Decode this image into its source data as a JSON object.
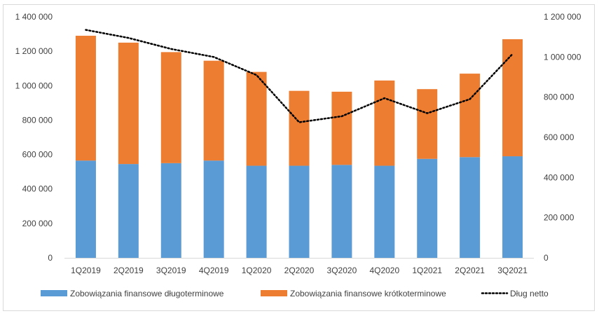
{
  "chart_data": {
    "type": "bar",
    "stacked": true,
    "categories": [
      "1Q2019",
      "2Q2019",
      "3Q2019",
      "4Q2019",
      "1Q2020",
      "2Q2020",
      "3Q2020",
      "4Q2020",
      "1Q2021",
      "2Q2021",
      "3Q2021"
    ],
    "series": [
      {
        "name": "Zobowiązania finansowe długoterminowe",
        "axis": "left",
        "kind": "bar",
        "color": "#5b9bd5",
        "values": [
          565000,
          545000,
          550000,
          565000,
          535000,
          535000,
          540000,
          535000,
          575000,
          585000,
          590000
        ]
      },
      {
        "name": "Zobowiązania finansowe krótkoterminowe",
        "axis": "left",
        "kind": "bar",
        "color": "#ed7d31",
        "values": [
          725000,
          705000,
          645000,
          580000,
          545000,
          435000,
          425000,
          495000,
          405000,
          485000,
          680000
        ]
      },
      {
        "name": "Dług netto",
        "axis": "right",
        "kind": "line",
        "style": "dotted",
        "color": "#000000",
        "values": [
          1135000,
          1095000,
          1040000,
          1000000,
          910000,
          675000,
          705000,
          795000,
          720000,
          790000,
          1015000
        ]
      }
    ],
    "y_left": {
      "min": 0,
      "max": 1400000,
      "ticks": [
        "0",
        "200 000",
        "400 000",
        "600 000",
        "800 000",
        "1 000 000",
        "1 200 000",
        "1 400 000"
      ]
    },
    "y_right": {
      "min": 0,
      "max": 1200000,
      "ticks": [
        "0",
        "200 000",
        "400 000",
        "600 000",
        "800 000",
        "1 000 000",
        "1 200 000"
      ]
    },
    "grid": false,
    "legend_position": "bottom"
  }
}
